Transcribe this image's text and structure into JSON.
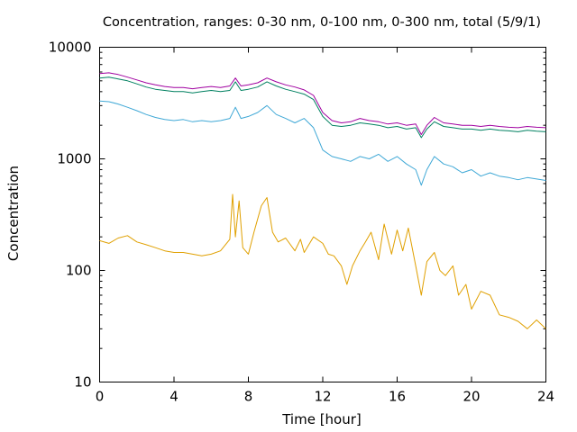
{
  "chart_data": {
    "type": "line",
    "title": "Concentration, ranges: 0-30 nm, 0-100 nm, 0-300 nm, total (5/9/1)",
    "xlabel": "Time [hour]",
    "ylabel": "Concentration",
    "xlim": [
      0,
      24
    ],
    "ylim": [
      10,
      10000
    ],
    "yscale": "log",
    "grid": false,
    "legend": "none",
    "xticks": [
      "0",
      "4",
      "8",
      "12",
      "16",
      "20",
      "24"
    ],
    "yticks": [
      "10",
      "100",
      "1000",
      "10000"
    ],
    "series": [
      {
        "color": "#e0a000",
        "points": [
          [
            0,
            185
          ],
          [
            0.5,
            175
          ],
          [
            1,
            195
          ],
          [
            1.5,
            205
          ],
          [
            2,
            180
          ],
          [
            2.5,
            170
          ],
          [
            3,
            160
          ],
          [
            3.5,
            150
          ],
          [
            4,
            145
          ],
          [
            4.5,
            145
          ],
          [
            5,
            140
          ],
          [
            5.5,
            135
          ],
          [
            6,
            140
          ],
          [
            6.5,
            150
          ],
          [
            7,
            190
          ],
          [
            7.15,
            480
          ],
          [
            7.3,
            200
          ],
          [
            7.5,
            420
          ],
          [
            7.7,
            160
          ],
          [
            8,
            140
          ],
          [
            8.3,
            220
          ],
          [
            8.7,
            380
          ],
          [
            9,
            450
          ],
          [
            9.3,
            220
          ],
          [
            9.6,
            180
          ],
          [
            10,
            195
          ],
          [
            10.5,
            150
          ],
          [
            10.8,
            190
          ],
          [
            11,
            145
          ],
          [
            11.5,
            200
          ],
          [
            12,
            175
          ],
          [
            12.3,
            140
          ],
          [
            12.6,
            135
          ],
          [
            13,
            110
          ],
          [
            13.3,
            75
          ],
          [
            13.6,
            110
          ],
          [
            14,
            150
          ],
          [
            14.3,
            180
          ],
          [
            14.6,
            220
          ],
          [
            15,
            125
          ],
          [
            15.3,
            260
          ],
          [
            15.7,
            140
          ],
          [
            16,
            230
          ],
          [
            16.3,
            150
          ],
          [
            16.6,
            240
          ],
          [
            17,
            110
          ],
          [
            17.3,
            60
          ],
          [
            17.6,
            120
          ],
          [
            18,
            145
          ],
          [
            18.3,
            100
          ],
          [
            18.6,
            90
          ],
          [
            19,
            110
          ],
          [
            19.3,
            60
          ],
          [
            19.7,
            75
          ],
          [
            20,
            45
          ],
          [
            20.5,
            65
          ],
          [
            21,
            60
          ],
          [
            21.5,
            40
          ],
          [
            22,
            38
          ],
          [
            22.5,
            35
          ],
          [
            23,
            30
          ],
          [
            23.5,
            36
          ],
          [
            24,
            30
          ]
        ]
      },
      {
        "color": "#3fa8d6",
        "points": [
          [
            0,
            3300
          ],
          [
            0.5,
            3250
          ],
          [
            1,
            3100
          ],
          [
            1.5,
            2900
          ],
          [
            2,
            2700
          ],
          [
            2.5,
            2500
          ],
          [
            3,
            2350
          ],
          [
            3.5,
            2250
          ],
          [
            4,
            2200
          ],
          [
            4.5,
            2250
          ],
          [
            5,
            2150
          ],
          [
            5.5,
            2200
          ],
          [
            6,
            2150
          ],
          [
            6.5,
            2200
          ],
          [
            7,
            2300
          ],
          [
            7.3,
            2900
          ],
          [
            7.6,
            2300
          ],
          [
            8,
            2400
          ],
          [
            8.5,
            2600
          ],
          [
            9,
            3000
          ],
          [
            9.5,
            2500
          ],
          [
            10,
            2300
          ],
          [
            10.5,
            2100
          ],
          [
            11,
            2300
          ],
          [
            11.5,
            1900
          ],
          [
            12,
            1200
          ],
          [
            12.5,
            1050
          ],
          [
            13,
            1000
          ],
          [
            13.5,
            950
          ],
          [
            14,
            1050
          ],
          [
            14.5,
            1000
          ],
          [
            15,
            1100
          ],
          [
            15.5,
            950
          ],
          [
            16,
            1050
          ],
          [
            16.5,
            900
          ],
          [
            17,
            800
          ],
          [
            17.3,
            580
          ],
          [
            17.6,
            800
          ],
          [
            18,
            1050
          ],
          [
            18.5,
            900
          ],
          [
            19,
            850
          ],
          [
            19.5,
            750
          ],
          [
            20,
            800
          ],
          [
            20.5,
            700
          ],
          [
            21,
            750
          ],
          [
            21.5,
            700
          ],
          [
            22,
            680
          ],
          [
            22.5,
            650
          ],
          [
            23,
            680
          ],
          [
            23.5,
            660
          ],
          [
            24,
            640
          ]
        ]
      },
      {
        "color": "#008060",
        "points": [
          [
            0,
            5300
          ],
          [
            0.5,
            5400
          ],
          [
            1,
            5200
          ],
          [
            1.5,
            5000
          ],
          [
            2,
            4700
          ],
          [
            2.5,
            4400
          ],
          [
            3,
            4200
          ],
          [
            3.5,
            4100
          ],
          [
            4,
            4000
          ],
          [
            4.5,
            4000
          ],
          [
            5,
            3900
          ],
          [
            5.5,
            4000
          ],
          [
            6,
            4100
          ],
          [
            6.5,
            4000
          ],
          [
            7,
            4100
          ],
          [
            7.3,
            4900
          ],
          [
            7.6,
            4100
          ],
          [
            8,
            4200
          ],
          [
            8.5,
            4400
          ],
          [
            9,
            4900
          ],
          [
            9.5,
            4500
          ],
          [
            10,
            4200
          ],
          [
            10.5,
            4000
          ],
          [
            11,
            3800
          ],
          [
            11.5,
            3400
          ],
          [
            12,
            2400
          ],
          [
            12.5,
            2000
          ],
          [
            13,
            1950
          ],
          [
            13.5,
            2000
          ],
          [
            14,
            2100
          ],
          [
            14.5,
            2050
          ],
          [
            15,
            2000
          ],
          [
            15.5,
            1900
          ],
          [
            16,
            1950
          ],
          [
            16.5,
            1850
          ],
          [
            17,
            1900
          ],
          [
            17.3,
            1550
          ],
          [
            17.6,
            1850
          ],
          [
            18,
            2150
          ],
          [
            18.5,
            1950
          ],
          [
            19,
            1900
          ],
          [
            19.5,
            1850
          ],
          [
            20,
            1850
          ],
          [
            20.5,
            1800
          ],
          [
            21,
            1850
          ],
          [
            21.5,
            1800
          ],
          [
            22,
            1780
          ],
          [
            22.5,
            1750
          ],
          [
            23,
            1800
          ],
          [
            23.5,
            1770
          ],
          [
            24,
            1750
          ]
        ]
      },
      {
        "color": "#a000a0",
        "points": [
          [
            0,
            5800
          ],
          [
            0.5,
            5900
          ],
          [
            1,
            5700
          ],
          [
            1.5,
            5400
          ],
          [
            2,
            5100
          ],
          [
            2.5,
            4800
          ],
          [
            3,
            4600
          ],
          [
            3.5,
            4450
          ],
          [
            4,
            4350
          ],
          [
            4.5,
            4350
          ],
          [
            5,
            4250
          ],
          [
            5.5,
            4350
          ],
          [
            6,
            4450
          ],
          [
            6.5,
            4350
          ],
          [
            7,
            4500
          ],
          [
            7.3,
            5300
          ],
          [
            7.6,
            4500
          ],
          [
            8,
            4600
          ],
          [
            8.5,
            4800
          ],
          [
            9,
            5300
          ],
          [
            9.5,
            4900
          ],
          [
            10,
            4600
          ],
          [
            10.5,
            4400
          ],
          [
            11,
            4150
          ],
          [
            11.5,
            3700
          ],
          [
            12,
            2600
          ],
          [
            12.5,
            2200
          ],
          [
            13,
            2100
          ],
          [
            13.5,
            2150
          ],
          [
            14,
            2300
          ],
          [
            14.5,
            2200
          ],
          [
            15,
            2150
          ],
          [
            15.5,
            2050
          ],
          [
            16,
            2100
          ],
          [
            16.5,
            2000
          ],
          [
            17,
            2050
          ],
          [
            17.3,
            1650
          ],
          [
            17.6,
            2000
          ],
          [
            18,
            2350
          ],
          [
            18.5,
            2100
          ],
          [
            19,
            2050
          ],
          [
            19.5,
            2000
          ],
          [
            20,
            2000
          ],
          [
            20.5,
            1950
          ],
          [
            21,
            2000
          ],
          [
            21.5,
            1950
          ],
          [
            22,
            1920
          ],
          [
            22.5,
            1900
          ],
          [
            23,
            1950
          ],
          [
            23.5,
            1920
          ],
          [
            24,
            1900
          ]
        ]
      }
    ]
  }
}
